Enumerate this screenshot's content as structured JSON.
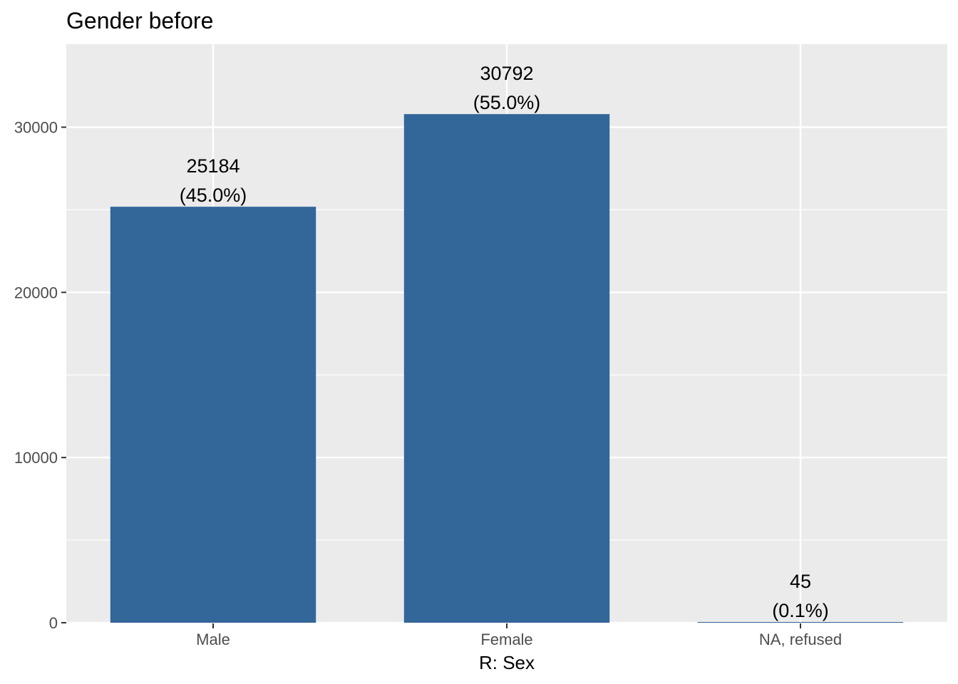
{
  "chart_data": {
    "type": "bar",
    "title": "Gender before",
    "xlabel": "R: Sex",
    "ylabel": "",
    "categories": [
      "Male",
      "Female",
      "NA, refused"
    ],
    "values": [
      25184,
      30792,
      45
    ],
    "value_labels": [
      "25184",
      "30792",
      "45"
    ],
    "percent_labels": [
      "(45.0%)",
      "(55.0%)",
      "(0.1%)"
    ],
    "ylim": [
      0,
      34200
    ],
    "yticks": [
      0,
      10000,
      20000,
      30000
    ],
    "ytick_labels": [
      "0",
      "10000",
      "20000",
      "30000"
    ],
    "grid": true,
    "legend": "none",
    "colors": {
      "bar": "#336699",
      "panel": "#ebebeb",
      "grid": "#ffffff"
    }
  }
}
